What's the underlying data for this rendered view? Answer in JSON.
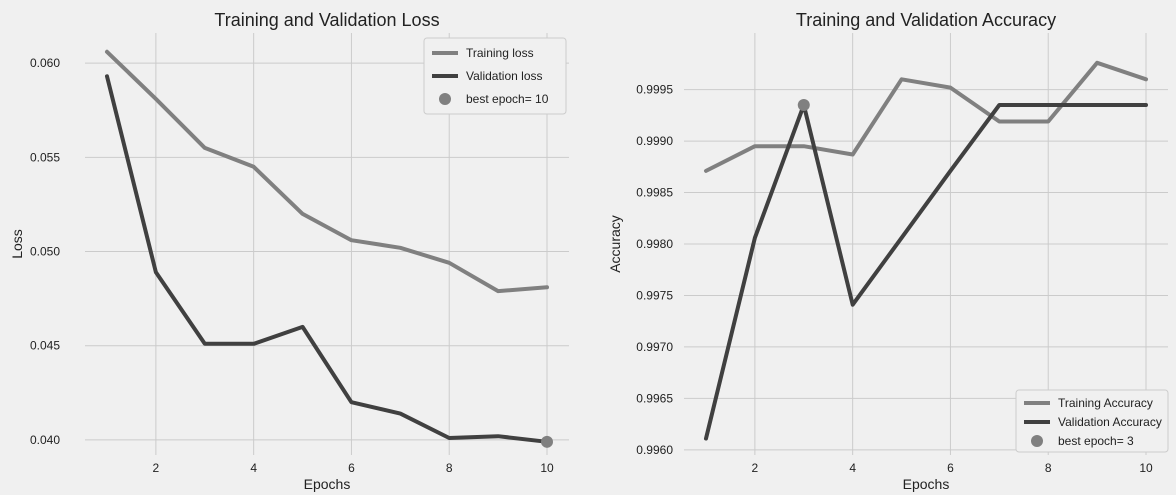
{
  "chart_data": [
    {
      "type": "line",
      "title": "Training and Validation Loss",
      "xlabel": "Epochs",
      "ylabel": "Loss",
      "x": [
        1,
        2,
        3,
        4,
        5,
        6,
        7,
        8,
        9,
        10
      ],
      "xticks": [
        2,
        4,
        6,
        8,
        10
      ],
      "xlim": [
        0.55,
        10.45
      ],
      "ylim": [
        0.0392,
        0.0616
      ],
      "yticks": [
        0.04,
        0.045,
        0.05,
        0.055,
        0.06
      ],
      "ytick_labels": [
        "0.040",
        "0.045",
        "0.050",
        "0.055",
        "0.060"
      ],
      "grid": true,
      "legend_position": "top-right",
      "series": [
        {
          "name": "Training loss",
          "color": "#808080",
          "values": [
            0.0606,
            0.0581,
            0.0555,
            0.0545,
            0.052,
            0.0506,
            0.0502,
            0.0494,
            0.0479,
            0.0481
          ]
        },
        {
          "name": "Validation loss",
          "color": "#404040",
          "values": [
            0.0593,
            0.0489,
            0.0451,
            0.0451,
            0.046,
            0.042,
            0.0414,
            0.0401,
            0.0402,
            0.0399
          ]
        }
      ],
      "best_point": {
        "label": "best epoch= 10",
        "x": 10,
        "y": 0.0399,
        "color": "#808080"
      }
    },
    {
      "type": "line",
      "title": "Training and Validation Accuracy",
      "xlabel": "Epochs",
      "ylabel": "Accuracy",
      "x": [
        1,
        2,
        3,
        4,
        5,
        6,
        7,
        8,
        9,
        10
      ],
      "xticks": [
        2,
        4,
        6,
        8,
        10
      ],
      "xlim": [
        0.55,
        10.45
      ],
      "ylim": [
        0.99595,
        1.00005
      ],
      "yticks": [
        0.996,
        0.9965,
        0.997,
        0.9975,
        0.998,
        0.9985,
        0.999,
        0.9995
      ],
      "ytick_labels": [
        "0.9960",
        "0.9965",
        "0.9970",
        "0.9975",
        "0.9980",
        "0.9985",
        "0.9990",
        "0.9995"
      ],
      "grid": true,
      "legend_position": "bottom-right",
      "series": [
        {
          "name": "Training Accuracy",
          "color": "#808080",
          "values": [
            0.99871,
            0.99895,
            0.99895,
            0.99887,
            0.9996,
            0.99952,
            0.99919,
            0.99919,
            0.99976,
            0.9996
          ]
        },
        {
          "name": "Validation Accuracy",
          "color": "#404040",
          "values": [
            0.99611,
            0.99806,
            0.99935,
            0.99741,
            0.99806,
            0.99871,
            0.99935,
            0.99935,
            0.99935,
            0.99935
          ]
        }
      ],
      "best_point": {
        "label": "best epoch= 3",
        "x": 3,
        "y": 0.99935,
        "color": "#808080"
      }
    }
  ]
}
